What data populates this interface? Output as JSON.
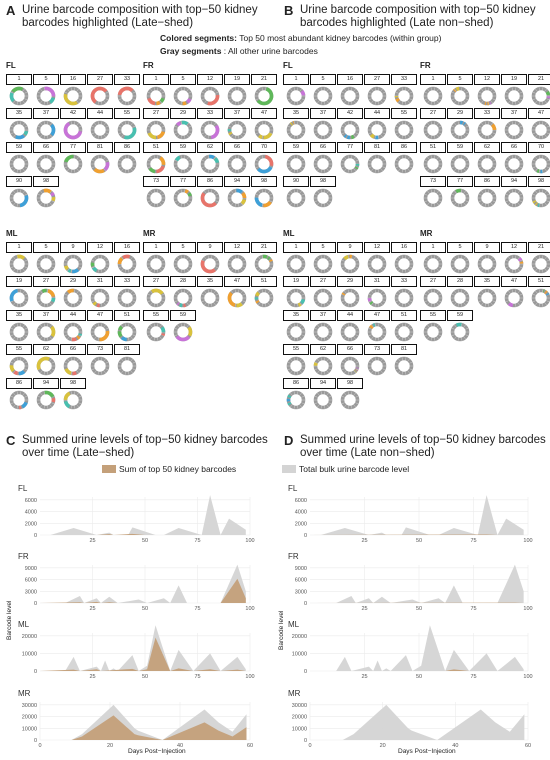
{
  "panels": {
    "A": {
      "label": "A",
      "title_lines": [
        "Urine barcode composition with top−50 kidney",
        "barcodes highlighted (Late−shed)"
      ]
    },
    "B": {
      "label": "B",
      "title_lines": [
        "Urine barcode composition with top−50 kidney",
        "barcodes highlighted (Late non−shed)"
      ]
    },
    "C": {
      "label": "C",
      "title_lines": [
        "Summed urine levels of top−50 kidney barcodes",
        "over time (Late−shed)"
      ]
    },
    "D": {
      "label": "D",
      "title_lines": [
        "Summed urine levels of top−50 kidney barcodes",
        "over time (Late non−shed)"
      ]
    }
  },
  "legend_top": {
    "colored_key": "Colored segments:",
    "colored_text": "Top 50 most abundant kidney barcodes (within group)",
    "gray_key": "Gray segments",
    "gray_text": ": All other urine barcodes"
  },
  "legend_bottom": {
    "sum_label": "Sum of top 50 kidney barcodes",
    "total_label": "Total bulk urine barcode level",
    "sum_color": "#c4a07a",
    "total_color": "#d4d4d4"
  },
  "axis_text": {
    "ylabel": "Barcode level",
    "xlabel": "Days Post−Injection"
  },
  "donut_groups": [
    {
      "name": "FL",
      "days": [
        "1",
        "5",
        "16",
        "27",
        "33",
        "35",
        "37",
        "42",
        "44",
        "55",
        "59",
        "66",
        "77",
        "81",
        "86",
        "90",
        "98"
      ]
    },
    {
      "name": "FR",
      "days": [
        "1",
        "5",
        "12",
        "19",
        "21",
        "27",
        "29",
        "33",
        "37",
        "47",
        "51",
        "59",
        "62",
        "66",
        "70",
        "73",
        "77",
        "86",
        "94",
        "98"
      ]
    },
    {
      "name": "ML",
      "days": [
        "1",
        "5",
        "9",
        "12",
        "16",
        "19",
        "27",
        "29",
        "31",
        "33",
        "35",
        "37",
        "44",
        "47",
        "51",
        "55",
        "62",
        "66",
        "73",
        "81",
        "86",
        "94",
        "98"
      ]
    },
    {
      "name": "MR",
      "days": [
        "1",
        "5",
        "9",
        "12",
        "21",
        "27",
        "28",
        "35",
        "47",
        "51",
        "55",
        "59"
      ]
    }
  ],
  "donut_palette": [
    "#e8746a",
    "#f0a030",
    "#5fb85a",
    "#3ea0d8",
    "#c873d8",
    "#d9c23c",
    "#48c0b0"
  ],
  "chart_data": [
    {
      "type": "area",
      "panel": "C",
      "xlabel": "Days Post−Injection",
      "ylabel": "Barcode level",
      "facets": [
        {
          "name": "FL",
          "xlim": [
            0,
            100
          ],
          "yticks": [
            0,
            2000,
            4000,
            6000
          ],
          "xticks": [
            25,
            50,
            75,
            100
          ],
          "total": {
            "x": [
              0,
              5,
              16,
              27,
              33,
              35,
              37,
              42,
              44,
              55,
              59,
              66,
              77,
              81,
              86,
              90,
              98
            ],
            "y": [
              0,
              0,
              1200,
              0,
              400,
              0,
              0,
              0,
              1300,
              0,
              0,
              1200,
              0,
              6800,
              0,
              2800,
              900
            ]
          },
          "top50": {
            "x": [
              0,
              27,
              33,
              35,
              44,
              50,
              98
            ],
            "y": [
              0,
              0,
              150,
              0,
              200,
              0,
              0
            ]
          }
        },
        {
          "name": "FR",
          "xlim": [
            0,
            100
          ],
          "yticks": [
            0,
            3000,
            6000,
            9000
          ],
          "xticks": [
            25,
            50,
            75,
            100
          ],
          "total": {
            "x": [
              0,
              5,
              12,
              19,
              21,
              27,
              29,
              33,
              37,
              47,
              51,
              59,
              62,
              66,
              70,
              73,
              77,
              86,
              94,
              98
            ],
            "y": [
              0,
              0,
              0,
              1800,
              0,
              1200,
              0,
              1600,
              0,
              900,
              0,
              1200,
              0,
              4500,
              0,
              0,
              0,
              0,
              9800,
              3000
            ]
          },
          "top50": {
            "x": [
              0,
              19,
              21,
              27,
              29,
              33,
              37,
              86,
              94,
              98
            ],
            "y": [
              0,
              200,
              0,
              300,
              0,
              200,
              0,
              0,
              6200,
              1200
            ]
          }
        },
        {
          "name": "ML",
          "xlim": [
            0,
            100
          ],
          "yticks": [
            0,
            10000,
            20000
          ],
          "xticks": [
            25,
            50,
            75,
            100
          ],
          "total": {
            "x": [
              0,
              5,
              9,
              12,
              16,
              19,
              27,
              29,
              31,
              33,
              35,
              37,
              44,
              47,
              51,
              55,
              62,
              66,
              73,
              81,
              86,
              94,
              98
            ],
            "y": [
              0,
              0,
              0,
              0,
              8000,
              0,
              2500,
              0,
              6000,
              0,
              1500,
              0,
              9000,
              0,
              3000,
              26000,
              0,
              12000,
              0,
              10000,
              0,
              8000,
              1000
            ]
          },
          "top50": {
            "x": [
              0,
              16,
              19,
              27,
              29,
              44,
              47,
              51,
              55,
              62,
              66,
              73,
              81,
              86,
              94,
              98
            ],
            "y": [
              0,
              800,
              0,
              1000,
              0,
              1200,
              0,
              1000,
              19000,
              0,
              1500,
              0,
              1000,
              0,
              800,
              0
            ]
          }
        },
        {
          "name": "MR",
          "xlim": [
            0,
            60
          ],
          "yticks": [
            0,
            10000,
            20000,
            30000
          ],
          "xticks": [
            0,
            20,
            40,
            60
          ],
          "total": {
            "x": [
              0,
              5,
              9,
              12,
              21,
              27,
              28,
              35,
              47,
              51,
              55,
              59
            ],
            "y": [
              0,
              0,
              0,
              5000,
              30000,
              10000,
              8000,
              0,
              26000,
              15000,
              7000,
              22000
            ]
          },
          "top50": {
            "x": [
              0,
              5,
              9,
              12,
              21,
              27,
              28,
              35,
              47,
              51,
              55,
              59
            ],
            "y": [
              0,
              0,
              0,
              3000,
              21000,
              5000,
              4000,
              0,
              15000,
              8000,
              3000,
              11000
            ]
          }
        }
      ]
    },
    {
      "type": "area",
      "panel": "D",
      "xlabel": "Days Post−Injection",
      "ylabel": "Barcode level",
      "facets": [
        {
          "name": "FL",
          "xlim": [
            0,
            100
          ],
          "yticks": [
            0,
            2000,
            4000,
            6000
          ],
          "xticks": [
            25,
            50,
            75,
            100
          ],
          "total": {
            "x": [
              0,
              5,
              16,
              27,
              33,
              35,
              37,
              42,
              44,
              55,
              59,
              66,
              77,
              81,
              86,
              90,
              98
            ],
            "y": [
              0,
              0,
              1200,
              0,
              400,
              0,
              0,
              0,
              1300,
              0,
              0,
              1200,
              0,
              6800,
              0,
              2800,
              900
            ]
          },
          "top50": {
            "x": [
              0,
              81,
              86,
              98
            ],
            "y": [
              0,
              80,
              0,
              0
            ]
          }
        },
        {
          "name": "FR",
          "xlim": [
            0,
            100
          ],
          "yticks": [
            0,
            3000,
            6000,
            9000
          ],
          "xticks": [
            25,
            50,
            75,
            100
          ],
          "total": {
            "x": [
              0,
              5,
              12,
              19,
              21,
              27,
              29,
              33,
              37,
              47,
              51,
              59,
              62,
              66,
              70,
              73,
              77,
              86,
              94,
              98
            ],
            "y": [
              0,
              0,
              0,
              1800,
              0,
              1200,
              0,
              1600,
              0,
              900,
              0,
              1200,
              0,
              4500,
              0,
              0,
              0,
              0,
              9800,
              3000
            ]
          },
          "top50": {
            "x": [
              0,
              94,
              98
            ],
            "y": [
              0,
              100,
              0
            ]
          }
        },
        {
          "name": "ML",
          "xlim": [
            0,
            100
          ],
          "yticks": [
            0,
            10000,
            20000
          ],
          "xticks": [
            25,
            50,
            75,
            100
          ],
          "total": {
            "x": [
              0,
              5,
              9,
              12,
              16,
              19,
              27,
              29,
              31,
              33,
              35,
              37,
              44,
              47,
              51,
              55,
              62,
              66,
              73,
              81,
              86,
              94,
              98
            ],
            "y": [
              0,
              0,
              0,
              0,
              8000,
              0,
              2500,
              0,
              6000,
              0,
              1500,
              0,
              9000,
              0,
              3000,
              26000,
              0,
              12000,
              0,
              10000,
              0,
              8000,
              1000
            ]
          },
          "top50": {
            "x": [
              0,
              62,
              66,
              73,
              98
            ],
            "y": [
              0,
              0,
              900,
              0,
              0
            ]
          }
        },
        {
          "name": "MR",
          "xlim": [
            0,
            60
          ],
          "yticks": [
            0,
            10000,
            20000,
            30000
          ],
          "xticks": [
            0,
            20,
            40,
            60
          ],
          "total": {
            "x": [
              0,
              5,
              9,
              12,
              21,
              27,
              28,
              35,
              47,
              51,
              55,
              59
            ],
            "y": [
              0,
              0,
              0,
              5000,
              30000,
              10000,
              8000,
              0,
              26000,
              15000,
              7000,
              22000
            ]
          },
          "top50": {
            "x": [
              0,
              59
            ],
            "y": [
              0,
              0
            ]
          }
        }
      ]
    }
  ]
}
